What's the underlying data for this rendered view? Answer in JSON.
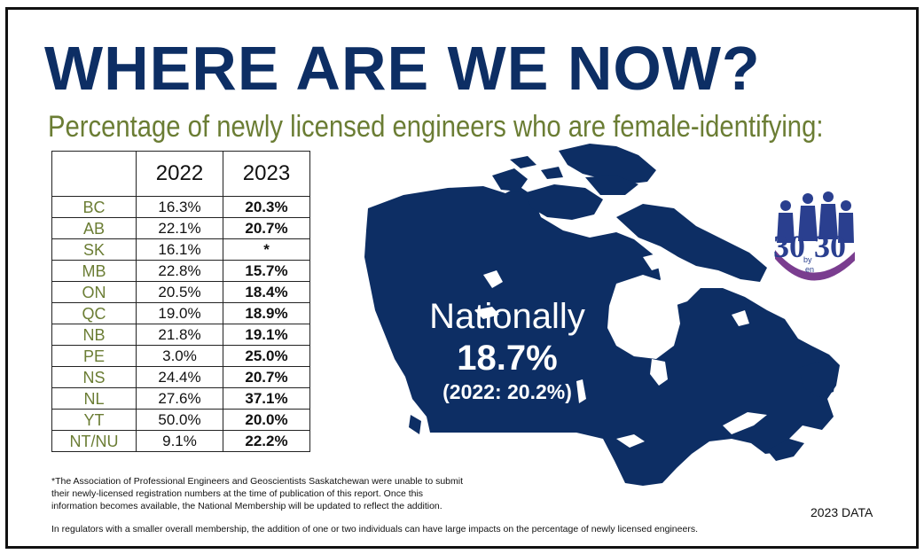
{
  "title": "WHERE ARE WE NOW?",
  "subtitle": "Percentage of newly licensed engineers who are female-identifying:",
  "national": {
    "label": "Nationally",
    "value": "18.7%",
    "previous": "(2022: 20.2%)"
  },
  "footnote_lines": [
    "*The Association of Professional Engineers and Geoscientists Saskatchewan were unable to submit",
    "their newly-licensed registration numbers at the time of publication of this report. Once this",
    "information becomes available, the National Membership will be updated to reflect the addition."
  ],
  "note": "In regulators with a smaller overall membership, the addition of one or two individuals can have large impacts on the percentage of newly licensed engineers.",
  "data_tag": "2023 DATA",
  "logo": {
    "text_main": "30",
    "text_by": "by",
    "text_en": "en",
    "text_end": "30"
  },
  "colors": {
    "navy": "#0d2e64",
    "olive": "#6b7d34",
    "purple": "#7a3d8f"
  },
  "chart_data": {
    "type": "table",
    "columns": [
      "",
      "2022",
      "2023"
    ],
    "rows": [
      [
        "BC",
        "16.3%",
        "20.3%"
      ],
      [
        "AB",
        "22.1%",
        "20.7%"
      ],
      [
        "SK",
        "16.1%",
        "*"
      ],
      [
        "MB",
        "22.8%",
        "15.7%"
      ],
      [
        "ON",
        "20.5%",
        "18.4%"
      ],
      [
        "QC",
        "19.0%",
        "18.9%"
      ],
      [
        "NB",
        "21.8%",
        "19.1%"
      ],
      [
        "PE",
        "3.0%",
        "25.0%"
      ],
      [
        "NS",
        "24.4%",
        "20.7%"
      ],
      [
        "NL",
        "27.6%",
        "37.1%"
      ],
      [
        "YT",
        "50.0%",
        "20.0%"
      ],
      [
        "NT/NU",
        "9.1%",
        "22.2%"
      ]
    ]
  }
}
